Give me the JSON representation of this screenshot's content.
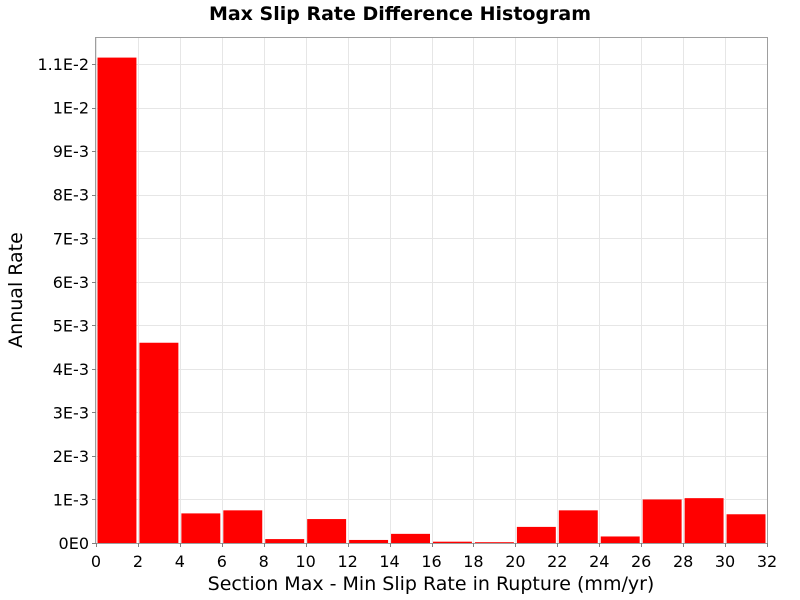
{
  "chart_data": {
    "type": "bar",
    "title": "Max Slip Rate Difference Histogram",
    "xlabel": "Section Max - Min Slip Rate in Rupture (mm/yr)",
    "ylabel": "Annual Rate",
    "bar_color": "#ff0000",
    "bin_width": 2,
    "x": [
      1,
      3,
      5,
      7,
      9,
      11,
      13,
      15,
      17,
      19,
      21,
      23,
      25,
      27,
      29,
      31
    ],
    "values": [
      0.01115,
      0.0046,
      0.00068,
      0.00075,
      9e-05,
      0.00055,
      7e-05,
      0.00021,
      3e-05,
      5e-06,
      0.00037,
      0.00075,
      0.00015,
      0.001,
      0.00103,
      0.00066
    ],
    "xlim": [
      0,
      32
    ],
    "ylim": [
      0,
      0.0116
    ],
    "grid": true,
    "x_ticks": [
      0,
      2,
      4,
      6,
      8,
      10,
      12,
      14,
      16,
      18,
      20,
      22,
      24,
      26,
      28,
      30,
      32
    ],
    "x_tick_labels": [
      "0",
      "2",
      "4",
      "6",
      "8",
      "10",
      "12",
      "14",
      "16",
      "18",
      "20",
      "22",
      "24",
      "26",
      "28",
      "30",
      "32"
    ],
    "y_ticks": [
      0,
      0.001,
      0.002,
      0.003,
      0.004,
      0.005,
      0.006,
      0.007,
      0.008,
      0.009,
      0.01,
      0.011
    ],
    "y_tick_labels": [
      "0E0",
      "1E-3",
      "2E-3",
      "3E-3",
      "4E-3",
      "5E-3",
      "6E-3",
      "7E-3",
      "8E-3",
      "9E-3",
      "1E-2",
      "1.1E-2"
    ]
  }
}
